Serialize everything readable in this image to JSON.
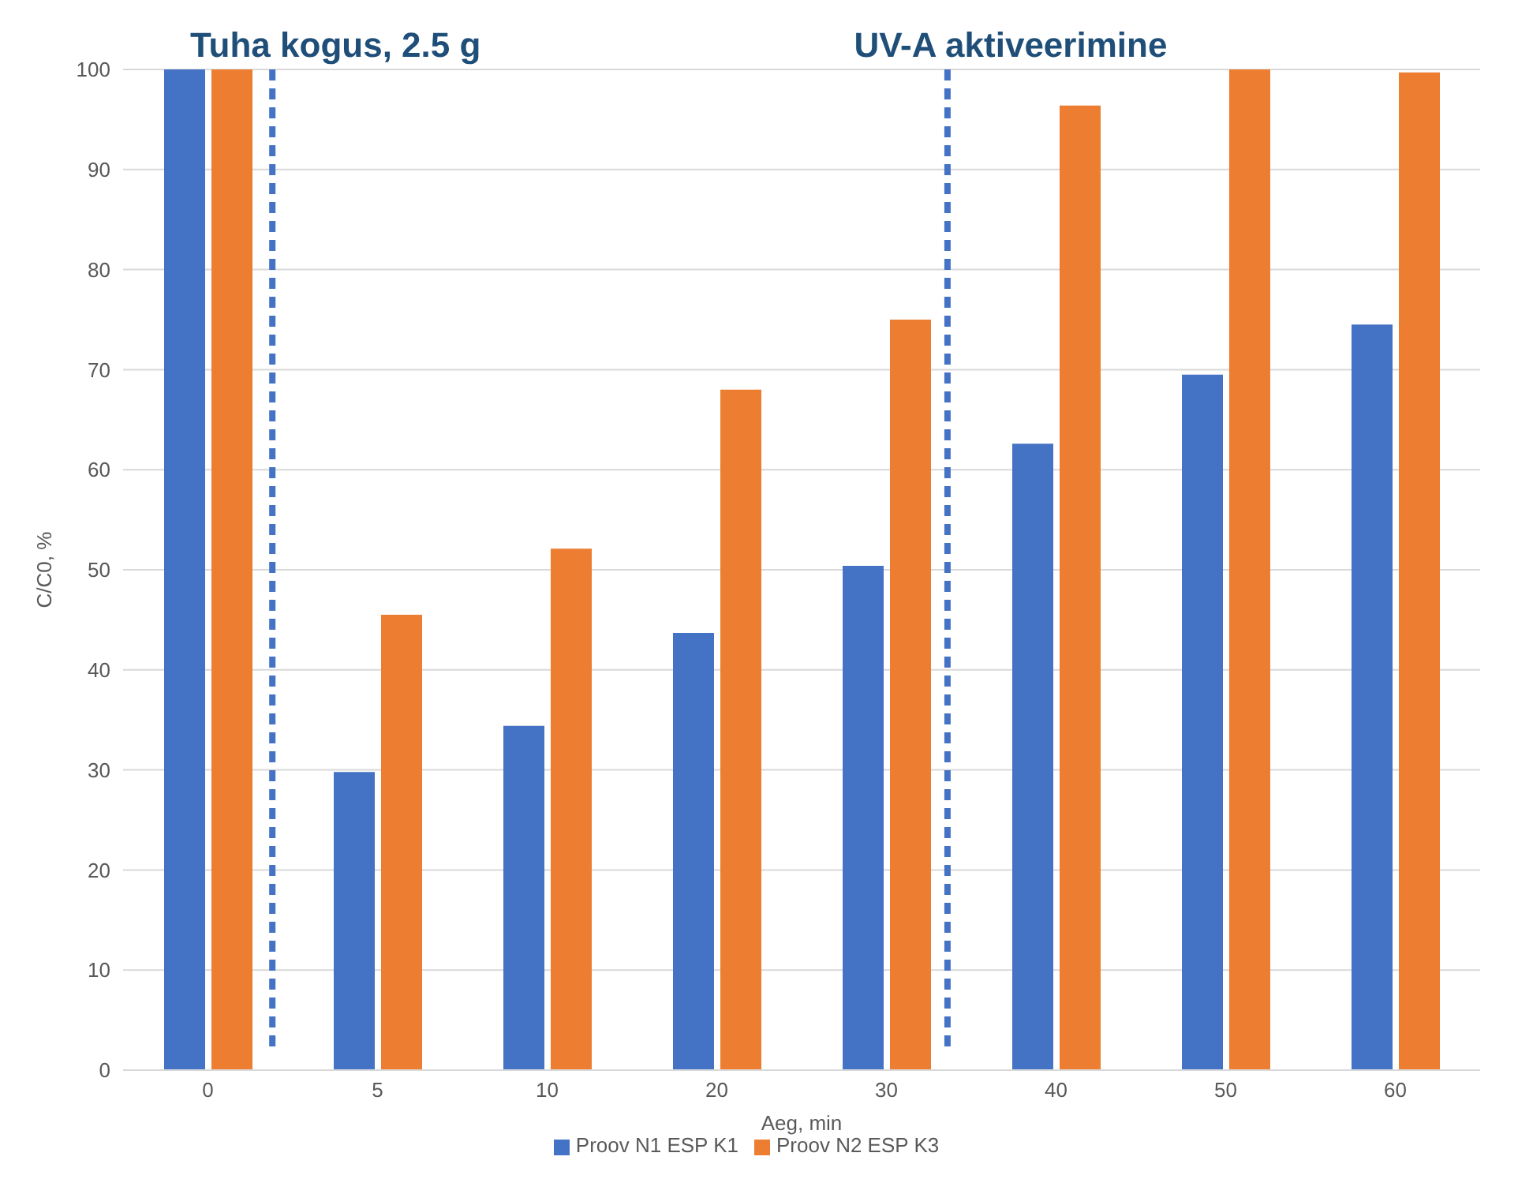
{
  "chart_data": {
    "type": "bar",
    "xlabel": "Aeg, min",
    "ylabel": "C/C0, %",
    "categories": [
      "0",
      "5",
      "10",
      "20",
      "30",
      "40",
      "50",
      "60"
    ],
    "series": [
      {
        "name": "Proov N1 ESP K1",
        "color": "#4472c4",
        "values": [
          100,
          29.8,
          34.4,
          43.7,
          50.4,
          62.6,
          69.5,
          74.5
        ]
      },
      {
        "name": "Proov N2 ESP K3",
        "color": "#ed7d31",
        "values": [
          100,
          45.5,
          52.1,
          68.0,
          75.0,
          96.4,
          100,
          99.7
        ]
      }
    ],
    "ylim": [
      0,
      100
    ],
    "yticks": [
      0,
      10,
      20,
      30,
      40,
      50,
      60,
      70,
      80,
      90,
      100
    ],
    "grid": "y",
    "legend": "bottom",
    "annotations": [
      "Tuha kogus, 2.5 g",
      "UV-A aktiveerimine"
    ]
  }
}
